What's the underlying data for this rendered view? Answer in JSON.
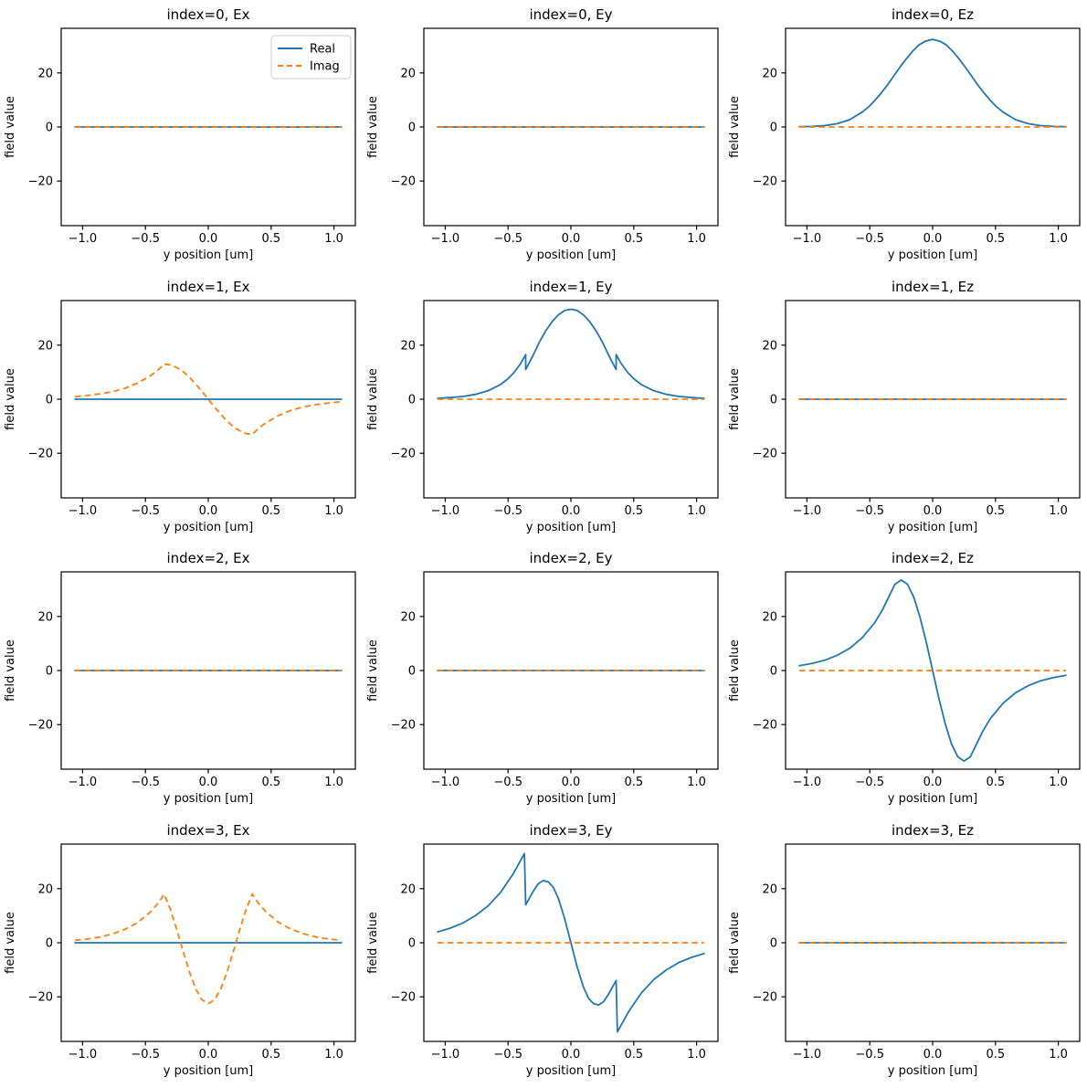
{
  "figure": {
    "background": "#ffffff",
    "rows": 4,
    "cols": 3,
    "description": "Waveguide mode electric field profiles: real and imaginary parts of Ex, Ey, Ez for mode indices 0-3"
  },
  "chart_data": {
    "type": "line",
    "xlabel": "y position [um]",
    "ylabel": "field value",
    "xlim": [
      -1.17,
      1.17
    ],
    "ylim": [
      -36.5,
      36.5
    ],
    "xticks": [
      -1.0,
      -0.5,
      0.0,
      0.5,
      1.0
    ],
    "xtick_labels": [
      "−1.0",
      "−0.5",
      "0.0",
      "0.5",
      "1.0"
    ],
    "yticks": [
      20,
      0,
      -20
    ],
    "ytick_labels": [
      "20",
      "0",
      "−20"
    ],
    "grid": false,
    "colors": {
      "real": "#1f77b4",
      "imag": "#ff7f0e",
      "frame": "#000000",
      "legend_border": "#cccccc"
    },
    "legend": {
      "position": "upper-right-first-subplot",
      "entries": [
        {
          "label": "Real",
          "color": "#1f77b4",
          "style": "solid"
        },
        {
          "label": "Imag",
          "color": "#ff7f0e",
          "style": "dashed"
        }
      ]
    },
    "curves": {
      "zero": [
        [
          -1.06,
          0
        ],
        [
          1.06,
          0
        ]
      ],
      "m0Ez": [
        [
          -1.06,
          0.1
        ],
        [
          -0.96,
          0.2
        ],
        [
          -0.86,
          0.5
        ],
        [
          -0.76,
          1.2
        ],
        [
          -0.66,
          2.7
        ],
        [
          -0.56,
          5.5
        ],
        [
          -0.51,
          7.4
        ],
        [
          -0.46,
          9.8
        ],
        [
          -0.41,
          12.5
        ],
        [
          -0.36,
          15.5
        ],
        [
          -0.31,
          18.8
        ],
        [
          -0.26,
          22.1
        ],
        [
          -0.21,
          25.2
        ],
        [
          -0.16,
          28.0
        ],
        [
          -0.11,
          30.3
        ],
        [
          -0.06,
          31.7
        ],
        [
          0,
          32.4
        ],
        [
          0.06,
          31.7
        ],
        [
          0.11,
          30.3
        ],
        [
          0.16,
          28.0
        ],
        [
          0.21,
          25.2
        ],
        [
          0.26,
          22.1
        ],
        [
          0.31,
          18.8
        ],
        [
          0.36,
          15.5
        ],
        [
          0.41,
          12.5
        ],
        [
          0.46,
          9.8
        ],
        [
          0.51,
          7.4
        ],
        [
          0.56,
          5.5
        ],
        [
          0.66,
          2.7
        ],
        [
          0.76,
          1.2
        ],
        [
          0.86,
          0.5
        ],
        [
          0.96,
          0.2
        ],
        [
          1.06,
          0.1
        ]
      ],
      "m1Ex": [
        [
          -1.06,
          0.9
        ],
        [
          -0.96,
          1.4
        ],
        [
          -0.86,
          2.0
        ],
        [
          -0.76,
          2.8
        ],
        [
          -0.66,
          4.1
        ],
        [
          -0.56,
          6.0
        ],
        [
          -0.46,
          8.7
        ],
        [
          -0.4,
          10.8
        ],
        [
          -0.35,
          13.0
        ],
        [
          -0.3,
          12.7
        ],
        [
          -0.25,
          11.7
        ],
        [
          -0.2,
          10.2
        ],
        [
          -0.15,
          8.1
        ],
        [
          -0.1,
          5.6
        ],
        [
          -0.05,
          2.9
        ],
        [
          0,
          0
        ],
        [
          0.05,
          -2.9
        ],
        [
          0.1,
          -5.6
        ],
        [
          0.15,
          -8.1
        ],
        [
          0.2,
          -10.2
        ],
        [
          0.25,
          -11.7
        ],
        [
          0.3,
          -12.7
        ],
        [
          0.35,
          -13.0
        ],
        [
          0.4,
          -10.8
        ],
        [
          0.46,
          -8.7
        ],
        [
          0.56,
          -6.0
        ],
        [
          0.66,
          -4.1
        ],
        [
          0.76,
          -2.8
        ],
        [
          0.86,
          -2.0
        ],
        [
          0.96,
          -1.4
        ],
        [
          1.06,
          -0.9
        ]
      ],
      "m1Ey": [
        [
          -1.06,
          0.3
        ],
        [
          -0.96,
          0.6
        ],
        [
          -0.86,
          1.0
        ],
        [
          -0.76,
          1.8
        ],
        [
          -0.66,
          3.1
        ],
        [
          -0.56,
          5.4
        ],
        [
          -0.5,
          7.6
        ],
        [
          -0.45,
          10.0
        ],
        [
          -0.4,
          13.2
        ],
        [
          -0.36,
          16.5
        ],
        [
          -0.36,
          11.0
        ],
        [
          -0.3,
          16.3
        ],
        [
          -0.25,
          21.2
        ],
        [
          -0.2,
          25.3
        ],
        [
          -0.15,
          28.7
        ],
        [
          -0.1,
          31.2
        ],
        [
          -0.05,
          32.8
        ],
        [
          0,
          33.3
        ],
        [
          0.05,
          32.8
        ],
        [
          0.1,
          31.2
        ],
        [
          0.15,
          28.7
        ],
        [
          0.2,
          25.3
        ],
        [
          0.25,
          21.2
        ],
        [
          0.3,
          16.3
        ],
        [
          0.36,
          11.0
        ],
        [
          0.36,
          16.5
        ],
        [
          0.4,
          13.2
        ],
        [
          0.45,
          10.0
        ],
        [
          0.5,
          7.6
        ],
        [
          0.56,
          5.4
        ],
        [
          0.66,
          3.1
        ],
        [
          0.76,
          1.8
        ],
        [
          0.86,
          1.0
        ],
        [
          0.96,
          0.6
        ],
        [
          1.06,
          0.3
        ]
      ],
      "m2Ez": [
        [
          -1.06,
          1.8
        ],
        [
          -0.96,
          2.6
        ],
        [
          -0.86,
          3.8
        ],
        [
          -0.76,
          5.6
        ],
        [
          -0.66,
          8.2
        ],
        [
          -0.56,
          12.1
        ],
        [
          -0.46,
          17.7
        ],
        [
          -0.4,
          22.4
        ],
        [
          -0.35,
          27.1
        ],
        [
          -0.3,
          31.9
        ],
        [
          -0.25,
          33.5
        ],
        [
          -0.2,
          31.9
        ],
        [
          -0.15,
          27.1
        ],
        [
          -0.1,
          19.7
        ],
        [
          -0.05,
          10.4
        ],
        [
          0,
          0
        ],
        [
          0.05,
          -10.4
        ],
        [
          0.1,
          -19.7
        ],
        [
          0.15,
          -27.1
        ],
        [
          0.2,
          -31.9
        ],
        [
          0.25,
          -33.5
        ],
        [
          0.3,
          -31.9
        ],
        [
          0.35,
          -27.1
        ],
        [
          0.4,
          -22.4
        ],
        [
          0.46,
          -17.7
        ],
        [
          0.56,
          -12.1
        ],
        [
          0.66,
          -8.2
        ],
        [
          0.76,
          -5.6
        ],
        [
          0.86,
          -3.8
        ],
        [
          0.96,
          -2.6
        ],
        [
          1.06,
          -1.8
        ]
      ],
      "m3Ex": [
        [
          -1.06,
          0.9
        ],
        [
          -0.96,
          1.4
        ],
        [
          -0.86,
          2.1
        ],
        [
          -0.76,
          3.3
        ],
        [
          -0.66,
          5.0
        ],
        [
          -0.56,
          7.5
        ],
        [
          -0.46,
          11.4
        ],
        [
          -0.4,
          14.6
        ],
        [
          -0.35,
          18.0
        ],
        [
          -0.3,
          12.2
        ],
        [
          -0.25,
          4.8
        ],
        [
          -0.22,
          0.0
        ],
        [
          -0.2,
          -3.2
        ],
        [
          -0.15,
          -10.8
        ],
        [
          -0.1,
          -17.0
        ],
        [
          -0.05,
          -21.1
        ],
        [
          0,
          -22.5
        ],
        [
          0.05,
          -21.1
        ],
        [
          0.1,
          -17.0
        ],
        [
          0.15,
          -10.8
        ],
        [
          0.2,
          -3.2
        ],
        [
          0.22,
          0.0
        ],
        [
          0.25,
          4.8
        ],
        [
          0.3,
          12.2
        ],
        [
          0.35,
          18.0
        ],
        [
          0.4,
          14.6
        ],
        [
          0.46,
          11.4
        ],
        [
          0.56,
          7.5
        ],
        [
          0.66,
          5.0
        ],
        [
          0.76,
          3.3
        ],
        [
          0.86,
          2.1
        ],
        [
          0.96,
          1.4
        ],
        [
          1.06,
          0.9
        ]
      ],
      "m3Ey": [
        [
          -1.06,
          4.0
        ],
        [
          -0.96,
          5.4
        ],
        [
          -0.86,
          7.3
        ],
        [
          -0.76,
          10.0
        ],
        [
          -0.66,
          13.6
        ],
        [
          -0.56,
          18.6
        ],
        [
          -0.46,
          25.4
        ],
        [
          -0.4,
          30.5
        ],
        [
          -0.37,
          33.0
        ],
        [
          -0.36,
          14.0
        ],
        [
          -0.3,
          19.0
        ],
        [
          -0.26,
          21.8
        ],
        [
          -0.22,
          23.0
        ],
        [
          -0.18,
          22.5
        ],
        [
          -0.14,
          20.5
        ],
        [
          -0.1,
          16.5
        ],
        [
          -0.05,
          9.0
        ],
        [
          0,
          0
        ],
        [
          0.05,
          -9.0
        ],
        [
          0.1,
          -16.5
        ],
        [
          0.14,
          -20.5
        ],
        [
          0.18,
          -22.5
        ],
        [
          0.22,
          -23.0
        ],
        [
          0.26,
          -21.8
        ],
        [
          0.3,
          -19.0
        ],
        [
          0.36,
          -14.0
        ],
        [
          0.37,
          -33.0
        ],
        [
          0.4,
          -30.5
        ],
        [
          0.46,
          -25.4
        ],
        [
          0.56,
          -18.6
        ],
        [
          0.66,
          -13.6
        ],
        [
          0.76,
          -10.0
        ],
        [
          0.86,
          -7.3
        ],
        [
          0.96,
          -5.4
        ],
        [
          1.06,
          -4.0
        ]
      ],
      "m1Ex_real": "zero"
    },
    "subplots": [
      {
        "title": "index=0, Ex",
        "real": "zero",
        "imag": "zero",
        "legend": true
      },
      {
        "title": "index=0, Ey",
        "real": "zero",
        "imag": "zero"
      },
      {
        "title": "index=0, Ez",
        "real": "m0Ez",
        "imag": "zero"
      },
      {
        "title": "index=1, Ex",
        "real": "zero",
        "imag": "m1Ex"
      },
      {
        "title": "index=1, Ey",
        "real": "m1Ey",
        "imag": "zero"
      },
      {
        "title": "index=1, Ez",
        "real": "zero",
        "imag": "zero"
      },
      {
        "title": "index=2, Ex",
        "real": "zero",
        "imag": "zero"
      },
      {
        "title": "index=2, Ey",
        "real": "zero",
        "imag": "zero"
      },
      {
        "title": "index=2, Ez",
        "real": "m2Ez",
        "imag": "zero"
      },
      {
        "title": "index=3, Ex",
        "real": "zero",
        "imag": "m3Ex"
      },
      {
        "title": "index=3, Ey",
        "real": "m3Ey",
        "imag": "zero"
      },
      {
        "title": "index=3, Ez",
        "real": "zero",
        "imag": "zero"
      }
    ]
  }
}
